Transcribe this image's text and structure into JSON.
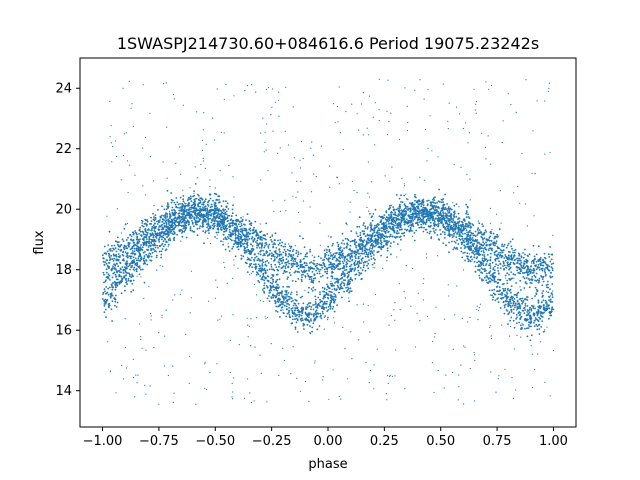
{
  "chart_data": {
    "type": "scatter",
    "title": "1SWASPJ214730.60+084616.6 Period 19075.23242s",
    "xlabel": "phase",
    "ylabel": "flux",
    "xlim": [
      -1.1,
      1.1
    ],
    "ylim": [
      12.8,
      25.0
    ],
    "xticks": [
      "−1.00",
      "−0.75",
      "−0.50",
      "−0.25",
      "0.00",
      "0.25",
      "0.50",
      "0.75",
      "1.00"
    ],
    "xtick_values": [
      -1.0,
      -0.75,
      -0.5,
      -0.25,
      0.0,
      0.25,
      0.5,
      0.75,
      1.0
    ],
    "yticks": [
      "14",
      "16",
      "18",
      "20",
      "22",
      "24"
    ],
    "ytick_values": [
      14,
      16,
      18,
      20,
      22,
      24
    ],
    "grid": false,
    "legend": "none",
    "point_color": "#1f77b4",
    "series": [
      {
        "x_range": [
          -1.0,
          1.0
        ],
        "upper_branch": {
          "phase": [
            -1.0,
            -0.9,
            -0.8,
            -0.7,
            -0.6,
            -0.5,
            -0.4,
            -0.3,
            -0.2,
            -0.1,
            0.0,
            0.1,
            0.2,
            0.3,
            0.4,
            0.5,
            0.6,
            0.7,
            0.8,
            0.9,
            1.0
          ],
          "flux": [
            18.1,
            18.7,
            19.2,
            19.7,
            19.9,
            19.8,
            19.4,
            18.9,
            18.4,
            18.0,
            18.1,
            18.6,
            19.2,
            19.7,
            19.9,
            19.8,
            19.4,
            18.9,
            18.4,
            18.0,
            18.1
          ]
        },
        "lower_branch": {
          "phase": [
            -1.0,
            -0.9,
            -0.8,
            -0.7,
            -0.6,
            -0.5,
            -0.4,
            -0.3,
            -0.2,
            -0.1,
            0.0,
            0.1,
            0.2,
            0.3,
            0.4,
            0.5,
            0.6,
            0.7,
            0.8,
            0.9,
            1.0
          ],
          "flux": [
            17.0,
            17.8,
            18.7,
            19.4,
            19.9,
            19.8,
            19.1,
            18.0,
            17.0,
            16.4,
            17.0,
            17.9,
            18.8,
            19.5,
            19.9,
            19.7,
            19.0,
            18.0,
            17.0,
            16.4,
            17.0
          ]
        },
        "band_scatter": 0.3,
        "outlier_range": [
          13.5,
          24.3
        ]
      }
    ]
  }
}
